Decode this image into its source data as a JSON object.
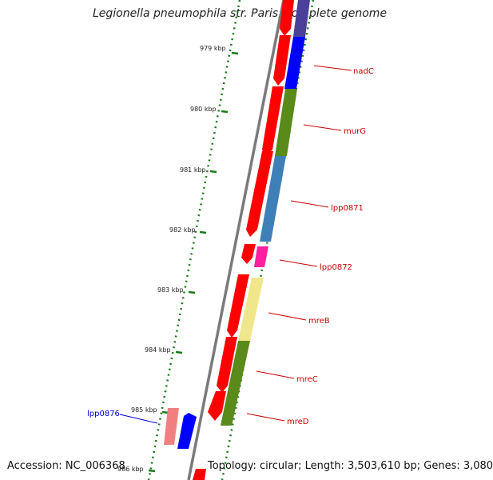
{
  "title": "Legionella pneumophila str. Paris, complete genome",
  "accession": "Accession: NC_006368",
  "topology": "Topology: circular; Length: 3,503,610 bp; Genes: 3,080",
  "ticks": [
    "979 kbp",
    "980 kbp",
    "981 kbp",
    "982 kbp",
    "983 kbp",
    "984 kbp",
    "985 kbp",
    "986 kbp"
  ],
  "genes": [
    {
      "name": "nadC",
      "strand": "forward",
      "color": "#cc0000"
    },
    {
      "name": "murG",
      "strand": "forward",
      "color": "#cc0000"
    },
    {
      "name": "lpp0871",
      "strand": "forward",
      "color": "#cc0000"
    },
    {
      "name": "lpp0872",
      "strand": "forward",
      "color": "#cc0000"
    },
    {
      "name": "mreB",
      "strand": "forward",
      "color": "#cc0000"
    },
    {
      "name": "mreC",
      "strand": "forward",
      "color": "#cc0000"
    },
    {
      "name": "mreD",
      "strand": "forward",
      "color": "#cc0000"
    },
    {
      "name": "lpp0876",
      "strand": "reverse",
      "color": "#0000cc"
    }
  ],
  "colors": {
    "cds": "#ff0000",
    "backbone": "#808080",
    "dotted_track": "#1a7a1a",
    "tick": "#1a7a1a"
  }
}
